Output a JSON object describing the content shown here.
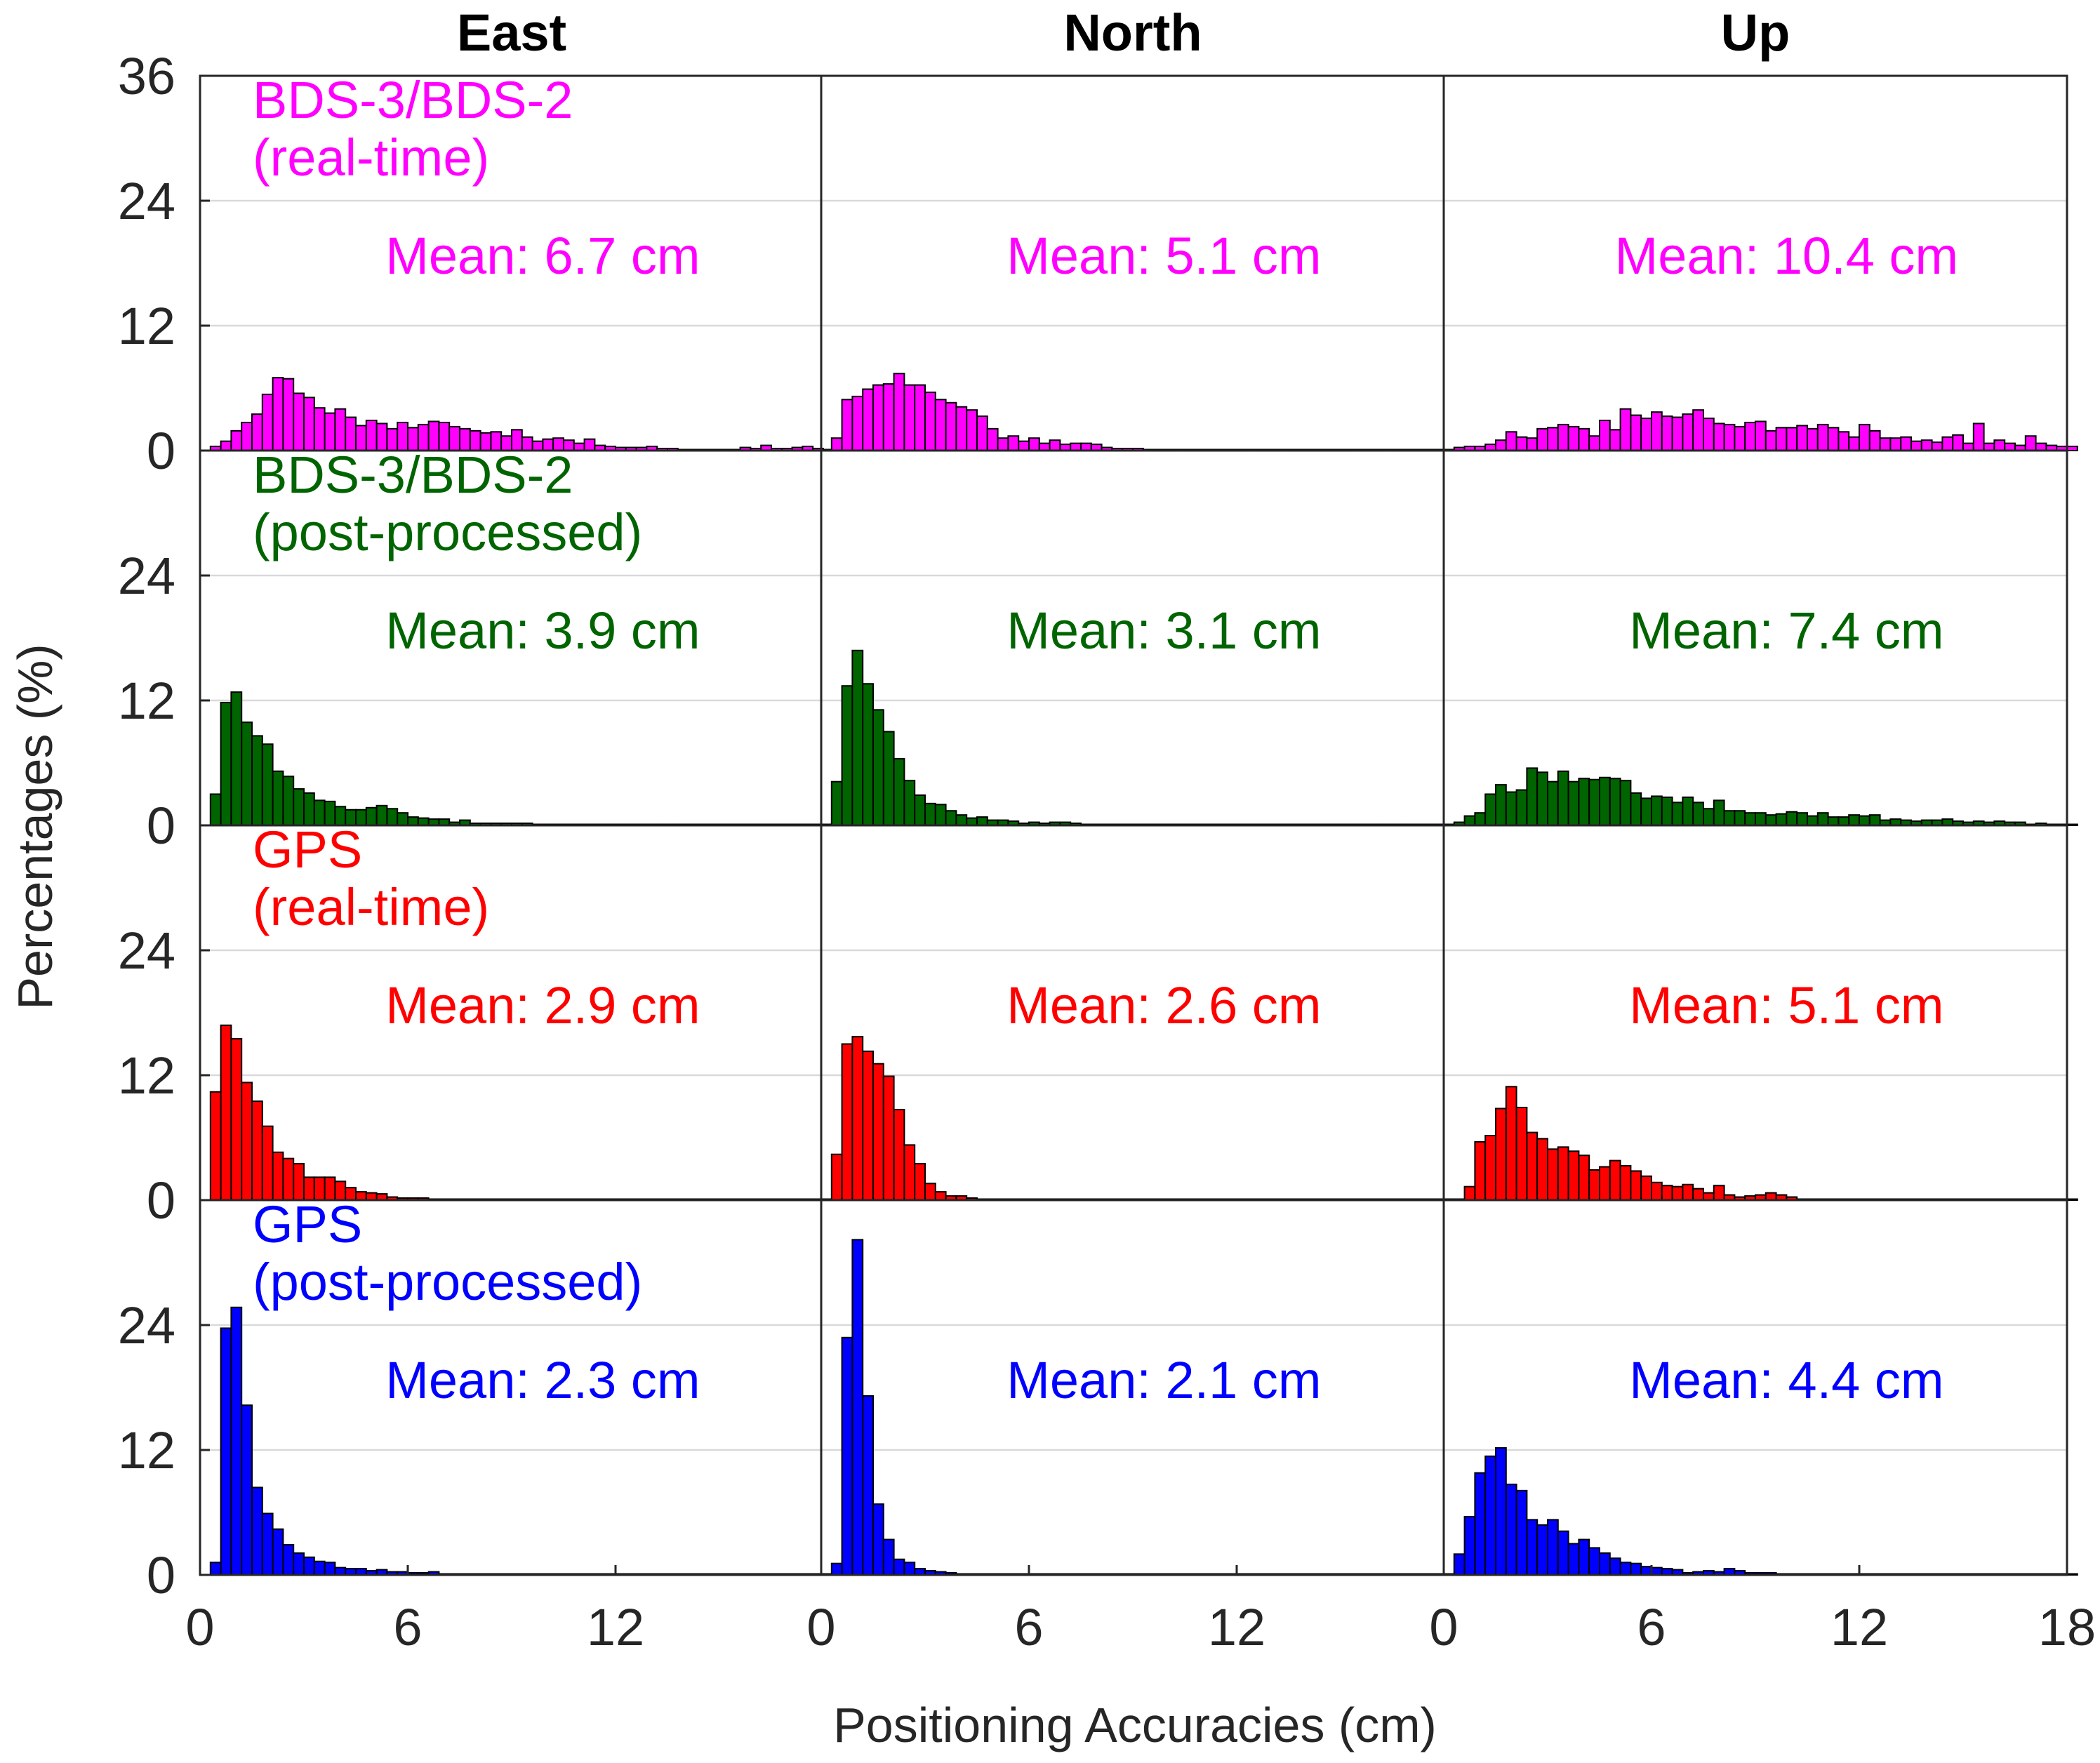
{
  "figure": {
    "ylabel": "Percentages (%)",
    "xlabel": "Positioning Accuracies (cm)",
    "columns": [
      "East",
      "North",
      "Up"
    ],
    "yticks": [
      0,
      12,
      24,
      36
    ],
    "xticks": [
      0,
      6,
      12,
      18
    ]
  },
  "chart_data": {
    "type": "bar",
    "layout": "4 rows x 3 columns of histograms",
    "xlim": [
      0,
      18
    ],
    "ylim": [
      0,
      36
    ],
    "bin_width_cm": 0.3,
    "bin_start_cm": 0.3,
    "rows": [
      {
        "label": [
          "BDS-3/BDS-2",
          "(real-time)"
        ],
        "color": "#ff00ff",
        "panels": [
          {
            "component": "East",
            "mean_label": "Mean: 6.7 cm",
            "values": [
              0.4,
              0.9,
              1.9,
              2.7,
              3.5,
              5.4,
              7.0,
              6.9,
              5.5,
              5.1,
              4.1,
              3.6,
              4.0,
              3.2,
              2.4,
              2.9,
              2.6,
              2.1,
              2.7,
              2.2,
              2.5,
              2.8,
              2.7,
              2.3,
              2.1,
              1.9,
              1.7,
              1.8,
              1.4,
              2.0,
              1.3,
              0.9,
              1.1,
              1.2,
              1.0,
              0.7,
              1.1,
              0.5,
              0.4,
              0.3,
              0.3,
              0.3,
              0.4,
              0.2,
              0.2,
              0.1,
              0.1,
              0.1,
              0.1,
              0.1,
              0.1,
              0.3,
              0.2,
              0.5,
              0.2,
              0.2,
              0.3,
              0.4,
              0.2,
              0.1
            ]
          },
          {
            "component": "North",
            "mean_label": "Mean: 5.1 cm",
            "values": [
              1.2,
              4.9,
              5.2,
              5.9,
              6.3,
              6.4,
              7.4,
              6.3,
              6.3,
              5.6,
              4.9,
              4.6,
              4.2,
              3.9,
              3.3,
              2.1,
              1.2,
              1.4,
              0.9,
              1.2,
              0.7,
              1.0,
              0.6,
              0.7,
              0.7,
              0.6,
              0.3,
              0.2,
              0.2,
              0.2,
              0.1,
              0.1,
              0.1,
              0.1,
              0.1,
              0.1,
              0.1,
              0.1,
              0.1,
              0.1,
              0.1,
              0.1,
              0.1,
              0.1,
              0.1,
              0.1,
              0.1,
              0.1,
              0.1,
              0.1,
              0.1,
              0.1,
              0.1,
              0.1,
              0.1,
              0.1,
              0.1,
              0.1,
              0.1,
              0.1
            ]
          },
          {
            "component": "Up",
            "mean_label": "Mean: 10.4 cm",
            "values": [
              0.3,
              0.4,
              0.4,
              0.6,
              1.0,
              1.8,
              1.3,
              1.2,
              2.1,
              2.2,
              2.5,
              2.3,
              2.1,
              1.4,
              2.9,
              2.0,
              4.0,
              3.4,
              3.1,
              3.7,
              3.3,
              3.2,
              3.5,
              3.9,
              3.1,
              2.6,
              2.5,
              2.3,
              2.7,
              2.8,
              1.9,
              2.2,
              2.2,
              2.4,
              2.1,
              2.5,
              2.2,
              1.8,
              1.3,
              2.5,
              1.9,
              1.2,
              1.2,
              1.3,
              0.9,
              1.0,
              0.8,
              1.3,
              1.5,
              0.7,
              2.6,
              0.7,
              1.0,
              0.7,
              0.5,
              1.4,
              0.7,
              0.5,
              0.4,
              0.4
            ]
          }
        ]
      },
      {
        "label": [
          "BDS-3/BDS-2",
          "(post-processed)"
        ],
        "color": "#006400",
        "panels": [
          {
            "component": "East",
            "mean_label": "Mean: 3.9 cm",
            "values": [
              3.0,
              11.8,
              12.8,
              9.9,
              8.6,
              7.8,
              5.2,
              4.7,
              3.5,
              3.1,
              2.4,
              2.3,
              1.8,
              1.5,
              1.5,
              1.7,
              1.9,
              1.6,
              1.2,
              0.8,
              0.7,
              0.6,
              0.6,
              0.3,
              0.5,
              0.2,
              0.2,
              0.2,
              0.2,
              0.2,
              0.2,
              0.1,
              0.1,
              0.1,
              0.1,
              0.1,
              0.1,
              0.1,
              0.1,
              0.1,
              0.1,
              0.1,
              0.1,
              0.1,
              0.1,
              0.1,
              0.1,
              0.1,
              0.1,
              0.1,
              0.1,
              0.1,
              0.1,
              0.1,
              0.1,
              0.1,
              0.1,
              0.1,
              0.1,
              0.1
            ]
          },
          {
            "component": "North",
            "mean_label": "Mean: 3.1 cm",
            "values": [
              4.2,
              13.4,
              16.8,
              13.6,
              11.1,
              9.0,
              6.4,
              4.3,
              2.9,
              2.1,
              2.0,
              1.4,
              1.0,
              0.7,
              0.8,
              0.5,
              0.5,
              0.4,
              0.2,
              0.3,
              0.2,
              0.3,
              0.3,
              0.2,
              0.1,
              0.1,
              0.1,
              0.1,
              0.1,
              0.1,
              0.1,
              0.1,
              0.1,
              0.1,
              0.1,
              0.1,
              0.1,
              0.1,
              0.1,
              0.1,
              0.1,
              0.1,
              0.1,
              0.1,
              0.1,
              0.1,
              0.1,
              0.1,
              0.1,
              0.1,
              0.1,
              0.1,
              0.1,
              0.1,
              0.1,
              0.1,
              0.1,
              0.1,
              0.1,
              0.1
            ]
          },
          {
            "component": "Up",
            "mean_label": "Mean: 7.4 cm",
            "values": [
              0.3,
              0.9,
              1.2,
              3.0,
              3.9,
              3.2,
              3.4,
              5.5,
              5.1,
              4.2,
              5.2,
              4.2,
              4.5,
              4.4,
              4.6,
              4.5,
              4.3,
              3.1,
              2.6,
              2.8,
              2.7,
              2.2,
              2.7,
              2.2,
              1.6,
              2.4,
              1.4,
              1.4,
              1.2,
              1.2,
              1.0,
              1.1,
              1.3,
              1.2,
              0.9,
              1.2,
              0.8,
              0.8,
              1.0,
              0.9,
              1.0,
              0.5,
              0.6,
              0.5,
              0.4,
              0.5,
              0.5,
              0.6,
              0.4,
              0.3,
              0.4,
              0.3,
              0.4,
              0.3,
              0.3,
              0.1,
              0.2,
              0.1,
              0.1,
              0.1
            ]
          }
        ]
      },
      {
        "label": [
          "GPS",
          "(real-time)"
        ],
        "color": "#ff0000",
        "panels": [
          {
            "component": "East",
            "mean_label": "Mean: 2.9 cm",
            "values": [
              10.4,
              16.8,
              15.5,
              11.3,
              9.5,
              7.1,
              4.6,
              4.0,
              3.5,
              2.2,
              2.2,
              2.2,
              1.8,
              1.2,
              0.8,
              0.7,
              0.6,
              0.3,
              0.2,
              0.2,
              0.2,
              0.1,
              0.1,
              0.1,
              0.1,
              0.1,
              0.1,
              0.1,
              0.1,
              0.1,
              0.1,
              0.1,
              0.1,
              0.1,
              0.1,
              0.1,
              0.1,
              0.1,
              0.1,
              0.1,
              0.1,
              0.1,
              0.1,
              0.1,
              0.1,
              0.1,
              0.1,
              0.1,
              0.1,
              0.1,
              0.1,
              0.1,
              0.1,
              0.1,
              0.1,
              0.1,
              0.1,
              0.1,
              0.1,
              0.1
            ]
          },
          {
            "component": "North",
            "mean_label": "Mean: 2.6 cm",
            "values": [
              4.4,
              15.0,
              15.7,
              14.3,
              13.1,
              11.9,
              8.7,
              5.3,
              3.5,
              1.6,
              0.8,
              0.4,
              0.4,
              0.2,
              0.1,
              0.1,
              0.1,
              0.1,
              0.1,
              0.1,
              0.1,
              0.1,
              0.1,
              0.1,
              0.1,
              0.1,
              0.1,
              0.1,
              0.1,
              0.1,
              0.1,
              0.1,
              0.1,
              0.1,
              0.1,
              0.1,
              0.1,
              0.1,
              0.1,
              0.1,
              0.1,
              0.1,
              0.1,
              0.1,
              0.1,
              0.1,
              0.1,
              0.1,
              0.1,
              0.1,
              0.1,
              0.1,
              0.1,
              0.1,
              0.1,
              0.1,
              0.1,
              0.1,
              0.1,
              0.1
            ]
          },
          {
            "component": "Up",
            "mean_label": "Mean: 5.1 cm",
            "values": [
              0.1,
              1.3,
              5.6,
              6.2,
              8.8,
              10.9,
              8.9,
              6.5,
              5.9,
              4.9,
              5.1,
              4.7,
              4.3,
              2.9,
              3.2,
              3.8,
              3.3,
              2.8,
              2.3,
              1.7,
              1.4,
              1.3,
              1.5,
              1.1,
              0.7,
              1.4,
              0.5,
              0.3,
              0.4,
              0.5,
              0.7,
              0.5,
              0.3,
              0.1,
              0.1,
              0.1,
              0.1,
              0.1,
              0.1,
              0.1,
              0.1,
              0.1,
              0.1,
              0.1,
              0.1,
              0.1,
              0.1,
              0.1,
              0.1,
              0.1,
              0.1,
              0.1,
              0.1,
              0.1,
              0.1,
              0.1,
              0.1,
              0.1,
              0.1,
              0.1
            ]
          }
        ]
      },
      {
        "label": [
          "GPS",
          "(post-processed)"
        ],
        "color": "#0000ff",
        "panels": [
          {
            "component": "East",
            "mean_label": "Mean: 2.3 cm",
            "values": [
              1.2,
              23.7,
              25.7,
              16.3,
              8.4,
              5.9,
              4.4,
              2.9,
              2.1,
              1.7,
              1.3,
              1.2,
              0.7,
              0.6,
              0.6,
              0.4,
              0.5,
              0.3,
              0.3,
              0.2,
              0.2,
              0.3,
              0.1,
              0.1,
              0.1,
              0.1,
              0.1,
              0.1,
              0.1,
              0.1,
              0.1,
              0.1,
              0.1,
              0.1,
              0.1,
              0.1,
              0.1,
              0.1,
              0.1,
              0.1,
              0.1,
              0.1,
              0.1,
              0.1,
              0.1,
              0.1,
              0.1,
              0.1,
              0.1,
              0.1,
              0.1,
              0.1,
              0.1,
              0.1,
              0.1,
              0.1,
              0.1,
              0.1,
              0.1,
              0.1
            ]
          },
          {
            "component": "North",
            "mean_label": "Mean: 2.1 cm",
            "values": [
              1.1,
              22.8,
              32.2,
              17.2,
              6.8,
              3.4,
              1.5,
              1.2,
              0.6,
              0.4,
              0.3,
              0.2,
              0.1,
              0.1,
              0.1,
              0.1,
              0.1,
              0.1,
              0.1,
              0.1,
              0.1,
              0.1,
              0.1,
              0.1,
              0.1,
              0.1,
              0.1,
              0.1,
              0.1,
              0.1,
              0.1,
              0.1,
              0.1,
              0.1,
              0.1,
              0.1,
              0.1,
              0.1,
              0.1,
              0.1,
              0.1,
              0.1,
              0.1,
              0.1,
              0.1,
              0.1,
              0.1,
              0.1,
              0.1,
              0.1,
              0.1,
              0.1,
              0.1,
              0.1,
              0.1,
              0.1,
              0.1,
              0.1,
              0.1,
              0.1
            ]
          },
          {
            "component": "Up",
            "mean_label": "Mean: 4.4 cm",
            "values": [
              2.0,
              5.6,
              9.8,
              11.4,
              12.2,
              8.7,
              8.1,
              5.3,
              4.8,
              5.3,
              4.2,
              3.0,
              3.4,
              2.6,
              2.1,
              1.6,
              1.2,
              1.1,
              0.8,
              0.7,
              0.6,
              0.5,
              0.2,
              0.3,
              0.4,
              0.3,
              0.6,
              0.4,
              0.2,
              0.2,
              0.2,
              0.1,
              0.1,
              0.1,
              0.1,
              0.1,
              0.1,
              0.1,
              0.1,
              0.1,
              0.1,
              0.1,
              0.1,
              0.1,
              0.1,
              0.1,
              0.1,
              0.1,
              0.1,
              0.1,
              0.1,
              0.1,
              0.1,
              0.1,
              0.1,
              0.1,
              0.1,
              0.1,
              0.1,
              0.1
            ]
          }
        ]
      }
    ]
  }
}
